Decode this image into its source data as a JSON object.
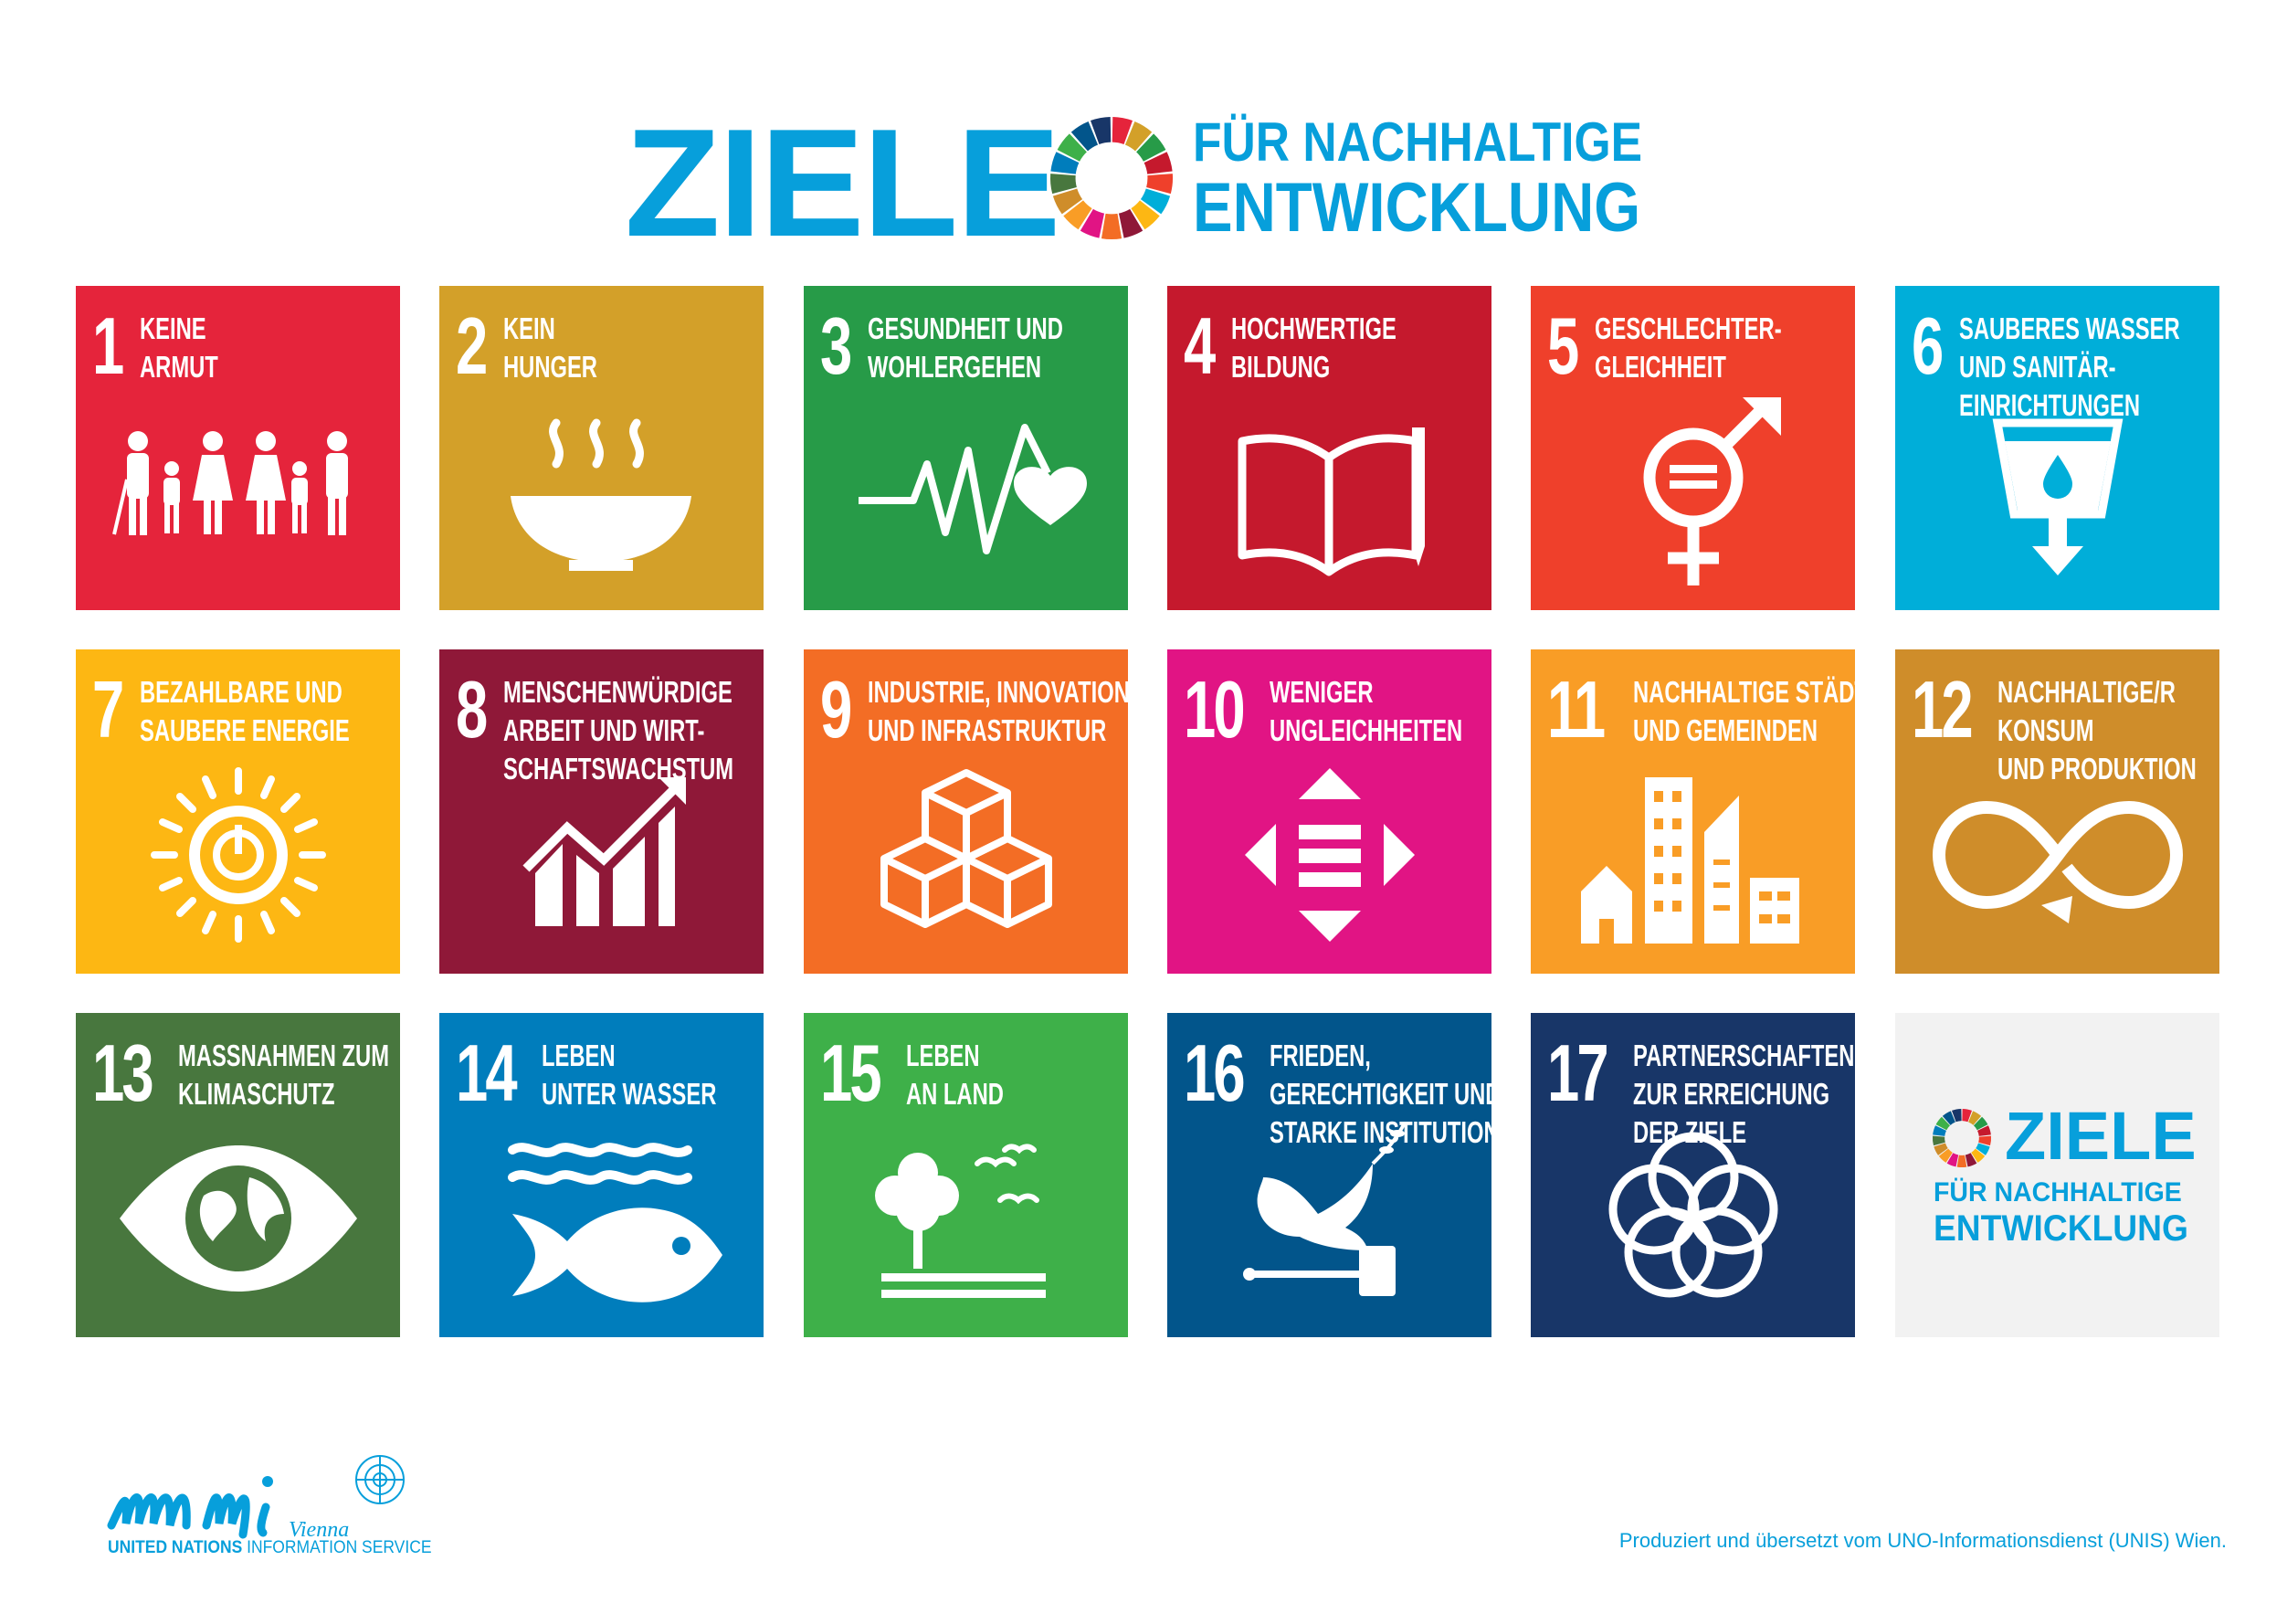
{
  "header": {
    "title_main": "ZIELE",
    "title_line1": "FÜR NACHHALTIGE",
    "title_line2": "ENTWICKLUNG",
    "brand_color": "#079fdb"
  },
  "goals": [
    {
      "number": "1",
      "title": "KEINE\nARMUT",
      "color": "#e5243b",
      "icon": "family-icon"
    },
    {
      "number": "2",
      "title": "KEIN\nHUNGER",
      "color": "#d3a029",
      "icon": "soup-bowl-icon"
    },
    {
      "number": "3",
      "title": "GESUNDHEIT UND\nWOHLERGEHEN",
      "color": "#279b48",
      "icon": "heartbeat-icon"
    },
    {
      "number": "4",
      "title": "HOCHWERTIGE\nBILDUNG",
      "color": "#c5192d",
      "icon": "book-pencil-icon"
    },
    {
      "number": "5",
      "title": "GESCHLECHTER-\nGLEICHHEIT",
      "color": "#ef402b",
      "icon": "gender-equality-icon"
    },
    {
      "number": "6",
      "title": "SAUBERES WASSER\nUND SANITÄR-\nEINRICHTUNGEN",
      "color": "#00aed9",
      "icon": "water-glass-icon"
    },
    {
      "number": "7",
      "title": "BEZAHLBARE UND\nSAUBERE ENERGIE",
      "color": "#fdb713",
      "icon": "sun-power-icon"
    },
    {
      "number": "8",
      "title": "MENSCHENWÜRDIGE\nARBEIT UND WIRT-\nSCHAFTSWACHSTUM",
      "color": "#8f1838",
      "icon": "growth-chart-icon"
    },
    {
      "number": "9",
      "title": "INDUSTRIE, INNOVATION\nUND INFRASTRUKTUR",
      "color": "#f36d25",
      "icon": "cubes-icon"
    },
    {
      "number": "10",
      "title": "WENIGER\nUNGLEICHHEITEN",
      "color": "#e11484",
      "icon": "equal-arrows-icon"
    },
    {
      "number": "11",
      "title": "NACHHALTIGE STÄDTE\nUND GEMEINDEN",
      "color": "#f99d26",
      "icon": "city-icon"
    },
    {
      "number": "12",
      "title": "NACHHALTIGE/R\nKONSUM\nUND PRODUKTION",
      "color": "#cf8d2a",
      "icon": "infinity-icon"
    },
    {
      "number": "13",
      "title": "MASSNAHMEN ZUM\nKLIMASCHUTZ",
      "color": "#48773e",
      "icon": "eye-globe-icon"
    },
    {
      "number": "14",
      "title": "LEBEN\nUNTER WASSER",
      "color": "#007dbc",
      "icon": "fish-waves-icon"
    },
    {
      "number": "15",
      "title": "LEBEN\nAN LAND",
      "color": "#3eb049",
      "icon": "tree-birds-icon"
    },
    {
      "number": "16",
      "title": "FRIEDEN,\nGERECHTIGKEIT UND\nSTARKE INSTITUTIONEN",
      "color": "#02558b",
      "icon": "dove-gavel-icon"
    },
    {
      "number": "17",
      "title": "PARTNERSCHAFTEN\nZUR ERREICHUNG\nDER ZIELE",
      "color": "#183668",
      "icon": "rings-icon"
    }
  ],
  "logo_tile": {
    "title_main": "ZIELE",
    "line1": "FÜR NACHHALTIGE",
    "line2": "ENTWICKLUNG"
  },
  "footer": {
    "org_logo": "unis Vienna",
    "org_bold": "UNITED NATIONS",
    "org_rest": " INFORMATION SERVICE",
    "credit": "Produziert und übersetzt vom UNO-Informationsdienst (UNIS) Wien."
  }
}
